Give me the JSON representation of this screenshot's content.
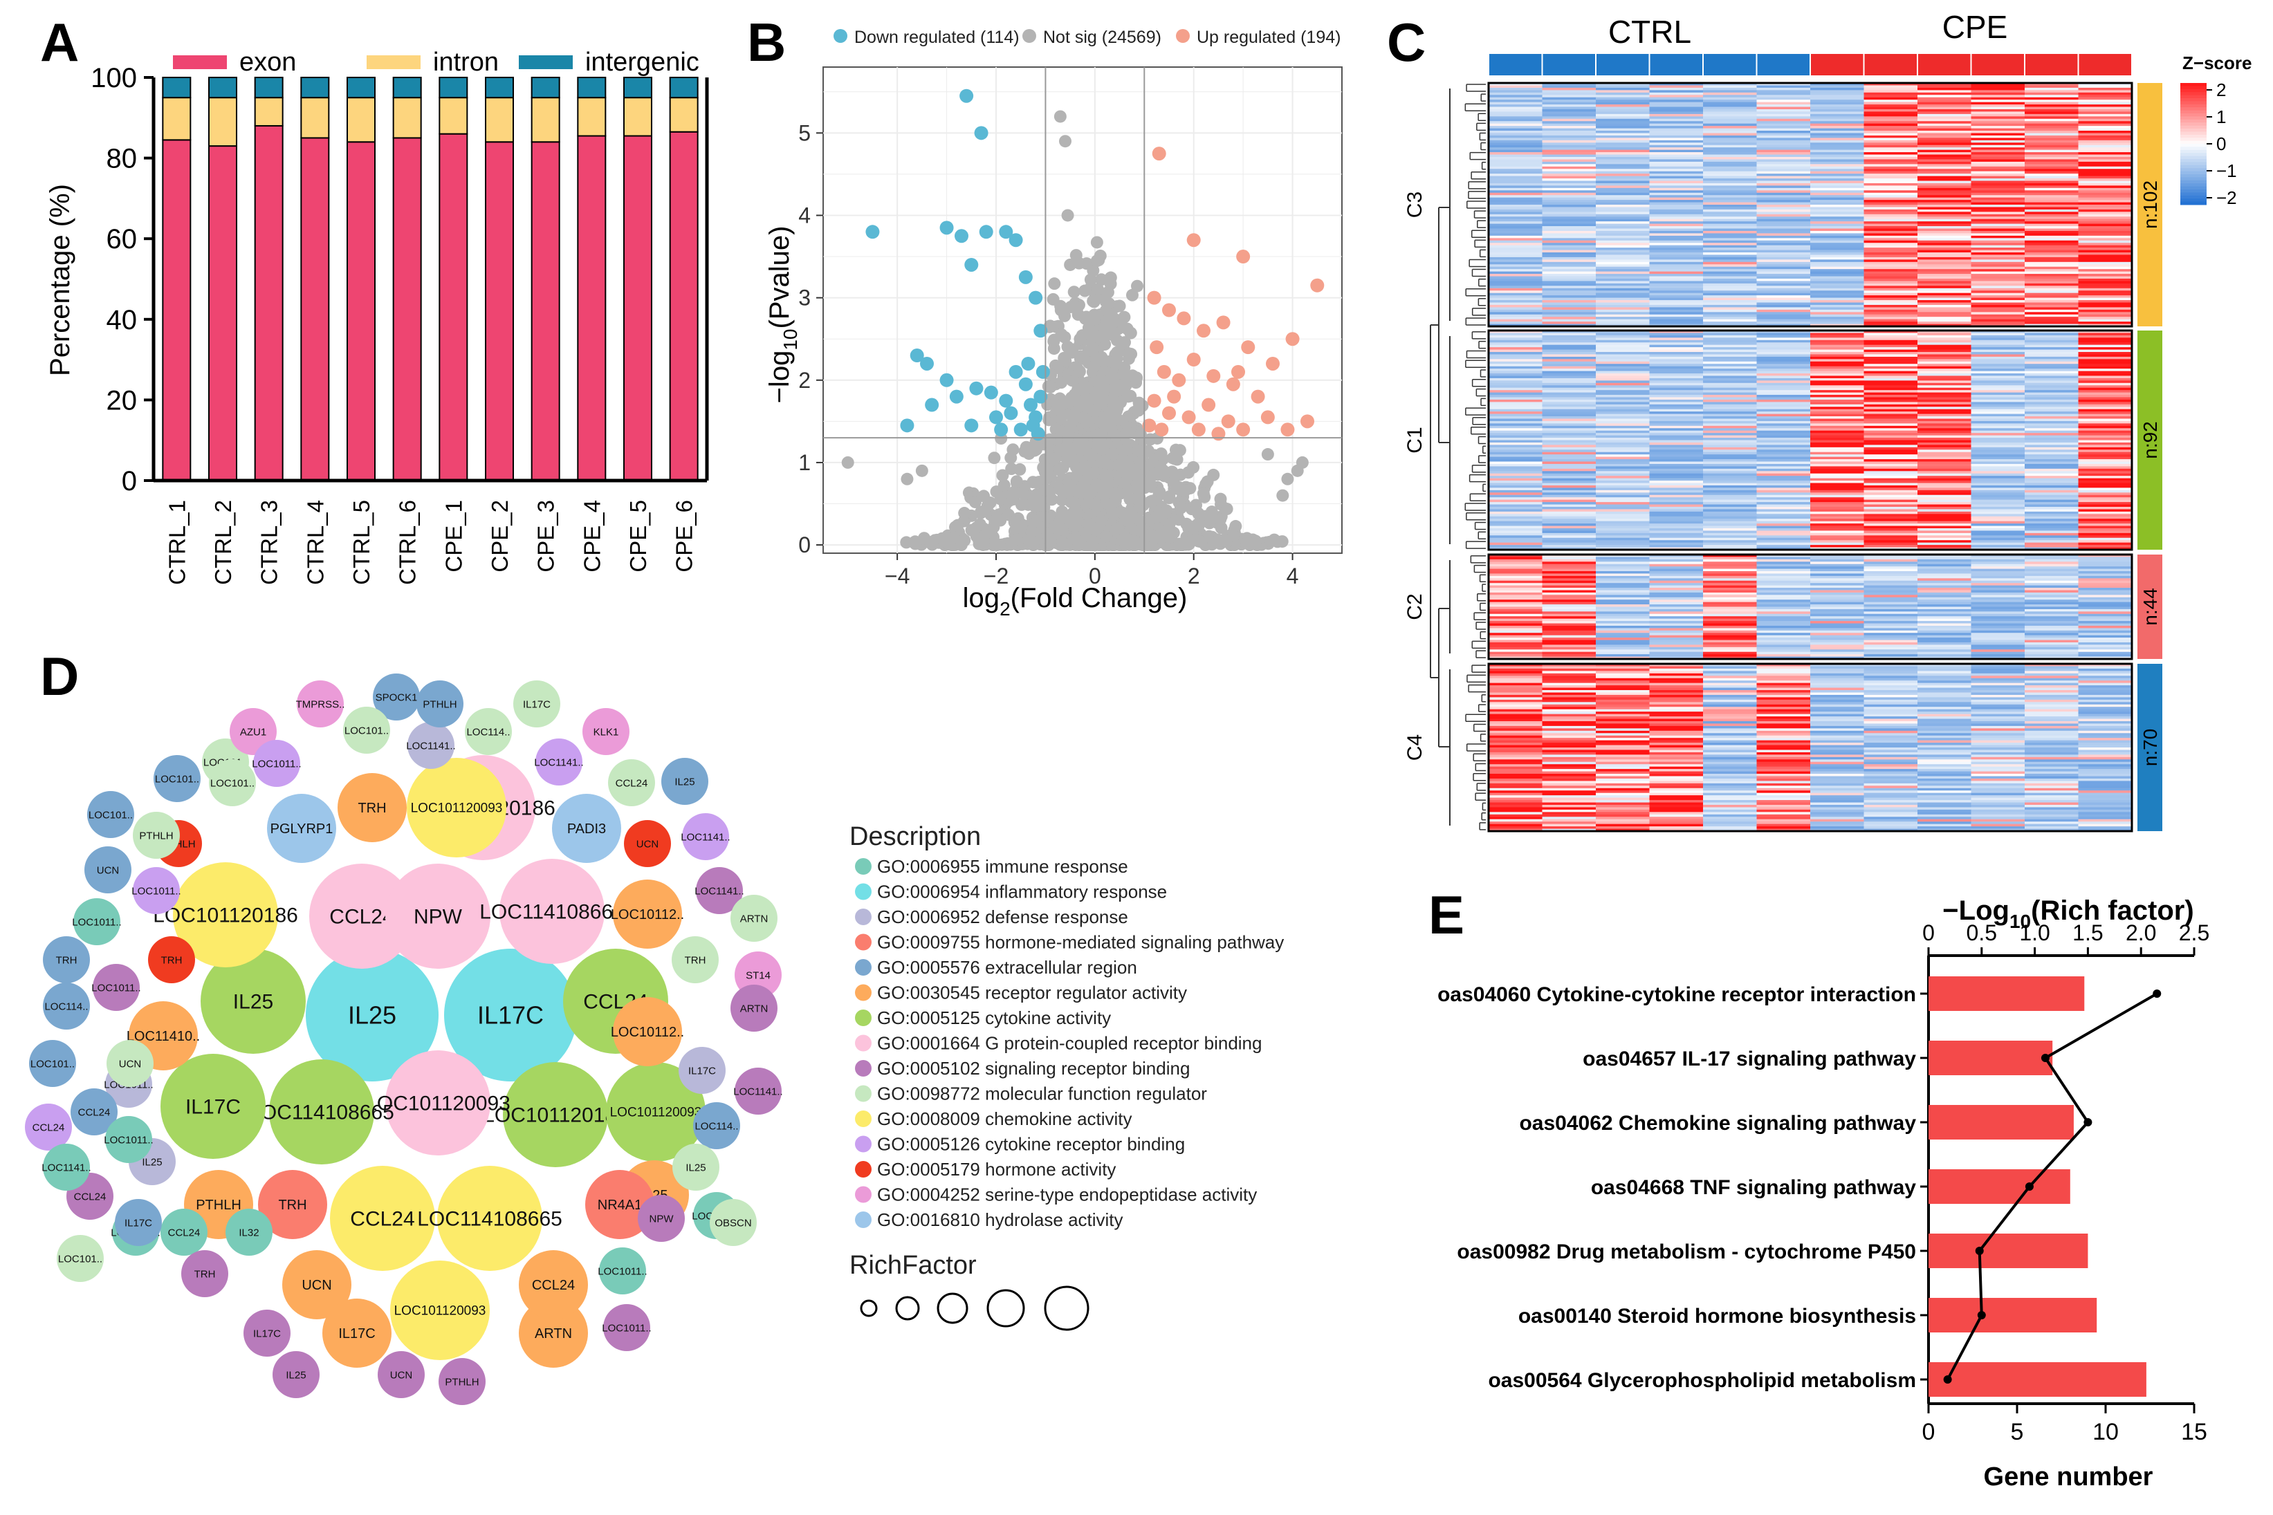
{
  "colors": {
    "exon": "#ee4571",
    "intron": "#fdd57e",
    "intergenic": "#1a86a8",
    "down": "#5ab8d4",
    "notsig": "#b3b3b3",
    "up": "#f4a08b",
    "ctrl_bar": "#1f78c8",
    "cpe_bar": "#ee2b2b",
    "c3": "#f8c03e",
    "c1": "#8cbf26",
    "c2": "#f26a6a",
    "c4": "#1f7fc0",
    "bar_e": "#f44a4a"
  },
  "chart_data": [
    {
      "panel": "A",
      "type": "bar",
      "stacked": true,
      "categories": [
        "CTRL_1",
        "CTRL_2",
        "CTRL_3",
        "CTRL_4",
        "CTRL_5",
        "CTRL_6",
        "CPE_1",
        "CPE_2",
        "CPE_3",
        "CPE_4",
        "CPE_5",
        "CPE_6"
      ],
      "series": [
        {
          "name": "exon",
          "values": [
            84.5,
            83,
            88,
            85,
            84,
            85,
            86,
            84,
            84,
            85.5,
            85.5,
            86.5
          ]
        },
        {
          "name": "intron",
          "values": [
            10.5,
            12,
            7,
            10,
            11,
            10,
            9,
            11,
            11,
            9.5,
            9.5,
            8.5
          ]
        },
        {
          "name": "intergenic",
          "values": [
            5,
            5,
            5,
            5,
            5,
            5,
            5,
            5,
            5,
            5,
            5,
            5
          ]
        }
      ],
      "ylabel": "Percentage (%)",
      "ylim": [
        0,
        100
      ],
      "yticks": [
        "0",
        "20",
        "40",
        "60",
        "80",
        "100"
      ]
    },
    {
      "panel": "B",
      "type": "scatter",
      "title": "",
      "legend": [
        "Down regulated (114)",
        "Not sig (24569)",
        "Up regulated (194)"
      ],
      "xlabel_main": "log",
      "xlabel_sub": "2",
      "xlabel_rest": "(Fold Change)",
      "ylabel_main": "−log",
      "ylabel_sub": "10",
      "ylabel_rest": "(Pvalue)",
      "xlim": [
        -5.5,
        5.0
      ],
      "ylim": [
        -0.1,
        5.8
      ],
      "xticks": [
        "−4",
        "−2",
        "0",
        "2",
        "4"
      ],
      "yticks": [
        "0",
        "1",
        "2",
        "3",
        "4",
        "5"
      ],
      "vlines": [
        -1,
        1
      ],
      "hline": 1.3,
      "down_points": [
        [
          -4.5,
          3.8
        ],
        [
          -2.6,
          5.45
        ],
        [
          -2.3,
          5.0
        ],
        [
          -3.0,
          3.85
        ],
        [
          -2.7,
          3.75
        ],
        [
          -2.2,
          3.8
        ],
        [
          -1.8,
          3.8
        ],
        [
          -1.6,
          3.7
        ],
        [
          -2.5,
          3.4
        ],
        [
          -1.4,
          3.25
        ],
        [
          -1.2,
          3.0
        ],
        [
          -1.1,
          2.6
        ],
        [
          -3.6,
          2.3
        ],
        [
          -3.4,
          2.2
        ],
        [
          -3.0,
          2.0
        ],
        [
          -3.3,
          1.7
        ],
        [
          -2.8,
          1.8
        ],
        [
          -2.4,
          1.9
        ],
        [
          -2.1,
          1.85
        ],
        [
          -1.8,
          1.75
        ],
        [
          -1.6,
          2.1
        ],
        [
          -1.4,
          1.95
        ],
        [
          -1.3,
          1.7
        ],
        [
          -1.2,
          1.55
        ],
        [
          -1.1,
          1.8
        ],
        [
          -3.8,
          1.45
        ],
        [
          -2.5,
          1.45
        ],
        [
          -1.9,
          1.4
        ],
        [
          -1.5,
          1.4
        ],
        [
          -1.15,
          1.35
        ],
        [
          -2.0,
          1.55
        ],
        [
          -1.7,
          1.6
        ],
        [
          -1.35,
          2.2
        ],
        [
          -1.05,
          2.1
        ],
        [
          -1.25,
          1.45
        ]
      ],
      "up_points": [
        [
          1.3,
          4.75
        ],
        [
          2.0,
          3.7
        ],
        [
          3.0,
          3.5
        ],
        [
          4.5,
          3.15
        ],
        [
          1.2,
          3.0
        ],
        [
          1.5,
          2.85
        ],
        [
          1.8,
          2.75
        ],
        [
          2.2,
          2.6
        ],
        [
          2.6,
          2.7
        ],
        [
          3.1,
          2.4
        ],
        [
          4.0,
          2.5
        ],
        [
          3.6,
          2.2
        ],
        [
          1.4,
          2.1
        ],
        [
          1.7,
          2.0
        ],
        [
          2.0,
          2.25
        ],
        [
          2.4,
          2.05
        ],
        [
          2.8,
          1.95
        ],
        [
          3.3,
          1.8
        ],
        [
          1.2,
          1.75
        ],
        [
          1.5,
          1.6
        ],
        [
          1.9,
          1.55
        ],
        [
          2.3,
          1.7
        ],
        [
          2.7,
          1.5
        ],
        [
          3.0,
          1.4
        ],
        [
          3.5,
          1.55
        ],
        [
          3.9,
          1.4
        ],
        [
          1.1,
          1.45
        ],
        [
          1.35,
          1.4
        ],
        [
          2.1,
          1.4
        ],
        [
          2.5,
          1.35
        ],
        [
          4.3,
          1.5
        ],
        [
          1.6,
          1.8
        ],
        [
          2.9,
          2.1
        ],
        [
          1.25,
          2.4
        ]
      ],
      "notsig_extreme": [
        [
          -5.0,
          1.0
        ],
        [
          -0.7,
          5.2
        ],
        [
          -0.6,
          4.9
        ],
        [
          -0.55,
          4.0
        ],
        [
          -0.5,
          3.4
        ],
        [
          0.3,
          3.2
        ],
        [
          0.5,
          2.9
        ],
        [
          -0.3,
          2.5
        ],
        [
          3.9,
          0.8
        ],
        [
          4.2,
          1.0
        ],
        [
          4.1,
          0.9
        ],
        [
          3.5,
          1.1
        ],
        [
          -3.5,
          0.9
        ],
        [
          -3.8,
          0.8
        ],
        [
          3.8,
          0.6
        ]
      ]
    },
    {
      "panel": "C",
      "type": "heatmap",
      "groups": [
        "CTRL",
        "CPE"
      ],
      "columns": 12,
      "legend_title": "Z−score",
      "legend_ticks": [
        "2",
        "1",
        "0",
        "−1",
        "−2"
      ],
      "clusters": [
        {
          "name": "C3",
          "n": "n:102",
          "rows": 102,
          "hot_cols": [
            7,
            8,
            9,
            10,
            11
          ]
        },
        {
          "name": "C1",
          "n": "n:92",
          "rows": 92,
          "hot_cols": [
            6,
            7,
            8,
            11
          ]
        },
        {
          "name": "C2",
          "n": "n:44",
          "rows": 44,
          "hot_cols": [
            0,
            1,
            4
          ]
        },
        {
          "name": "C4",
          "n": "n:70",
          "rows": 70,
          "hot_cols": [
            0,
            1,
            2,
            3,
            5
          ]
        }
      ]
    },
    {
      "panel": "E",
      "type": "bar",
      "orientation": "horizontal",
      "categories": [
        "oas04060 Cytokine-cytokine receptor interaction",
        "oas04657 IL-17 signaling pathway",
        "oas04062 Chemokine signaling pathway",
        "oas04668 TNF signaling pathway",
        "oas00982 Drug metabolism - cytochrome P450",
        "oas00140 Steroid hormone biosynthesis",
        "oas00564 Glycerophospholipid metabolism"
      ],
      "values": [
        8.8,
        7,
        8.2,
        8,
        9,
        9.5,
        12.3
      ],
      "line_values": [
        2.15,
        1.1,
        1.5,
        0.95,
        0.48,
        0.5,
        0.18
      ],
      "xlabel_bottom": "Gene number",
      "xlim_bottom": [
        0,
        15
      ],
      "xticks_bottom": [
        "0",
        "5",
        "10",
        "15"
      ],
      "xlabel_top_main": "−Log",
      "xlabel_top_sub": "10",
      "xlabel_top_rest": "(Rich factor)",
      "xlim_top": [
        0,
        2.5
      ],
      "xticks_top": [
        "0",
        "0.5",
        "1.0",
        "1.5",
        "2.0",
        "2.5"
      ]
    }
  ],
  "panelA": {
    "label": "A",
    "legend": [
      "exon",
      "intron",
      "intergenic"
    ]
  },
  "panelB": {
    "label": "B"
  },
  "panelC": {
    "label": "C",
    "ctrl": "CTRL",
    "cpe": "CPE"
  },
  "panelD": {
    "label": "D",
    "description_title": "Description",
    "terms": [
      {
        "id": "immune",
        "label": "GO:0006955 immune response",
        "color": "#79cbb8"
      },
      {
        "id": "inflam",
        "label": "GO:0006954 inflammatory response",
        "color": "#73dfe6"
      },
      {
        "id": "defense",
        "label": "GO:0006952 defense response",
        "color": "#b8b8d9"
      },
      {
        "id": "hormone",
        "label": "GO:0009755 hormone-mediated signaling pathway",
        "color": "#fa7d6e"
      },
      {
        "id": "extrac",
        "label": "GO:0005576 extracellular region",
        "color": "#7aa7cf"
      },
      {
        "id": "receptor",
        "label": "GO:0030545 receptor regulator activity",
        "color": "#fdab5c"
      },
      {
        "id": "cytokine",
        "label": "GO:0005125 cytokine activity",
        "color": "#a6d661"
      },
      {
        "id": "gpcr",
        "label": "GO:0001664 G protein-coupled receptor binding",
        "color": "#fcc3dc"
      },
      {
        "id": "signal",
        "label": "GO:0005102 signaling receptor binding",
        "color": "#b87bbb"
      },
      {
        "id": "molfn",
        "label": "GO:0098772 molecular function regulator",
        "color": "#c6e8c0"
      },
      {
        "id": "chemo",
        "label": "GO:0008009 chemokine activity",
        "color": "#fceb6a"
      },
      {
        "id": "cytbind",
        "label": "GO:0005126 cytokine receptor binding",
        "color": "#c99ff0"
      },
      {
        "id": "horm",
        "label": "GO:0005179 hormone activity",
        "color": "#f03b20"
      },
      {
        "id": "serine",
        "label": "GO:0004252 serine-type endopeptidase activity",
        "color": "#eb9bd8"
      },
      {
        "id": "hydro",
        "label": "GO:0016810 hydrolase activity",
        "color": "#9cc6ea"
      }
    ],
    "richfactor_title": "RichFactor",
    "bubbles": [
      {
        "label": "IL25",
        "term": "inflam",
        "size": 5
      },
      {
        "label": "IL17C",
        "term": "inflam",
        "size": 5
      },
      {
        "label": "CCL24",
        "term": "gpcr",
        "size": 4
      },
      {
        "label": "NPW",
        "term": "gpcr",
        "size": 4
      },
      {
        "label": "LOC114108665",
        "term": "gpcr",
        "size": 4
      },
      {
        "label": "CCL24",
        "term": "cytokine",
        "size": 4
      },
      {
        "label": "LOC101120186",
        "term": "cytokine",
        "size": 4
      },
      {
        "label": "LOC101120093",
        "term": "gpcr",
        "size": 4
      },
      {
        "label": "LOC114108665",
        "term": "cytokine",
        "size": 4
      },
      {
        "label": "IL17C",
        "term": "cytokine",
        "size": 4
      },
      {
        "label": "IL25",
        "term": "cytokine",
        "size": 4
      },
      {
        "label": "LOC101120186",
        "term": "gpcr",
        "size": 4
      },
      {
        "label": "LOC101120093",
        "term": "cytokine",
        "size": 3
      },
      {
        "label": "CCL24",
        "term": "chemo",
        "size": 4
      },
      {
        "label": "LOC114108665",
        "term": "chemo",
        "size": 4
      },
      {
        "label": "LOC101120093",
        "term": "chemo",
        "size": 3
      },
      {
        "label": "LOC101120186",
        "term": "chemo",
        "size": 4
      },
      {
        "label": "TRH",
        "term": "receptor",
        "size": 2
      },
      {
        "label": "PGLYRP1",
        "term": "hydro",
        "size": 2
      },
      {
        "label": "PADI3",
        "term": "hydro",
        "size": 2
      },
      {
        "label": "PTHLH",
        "term": "horm",
        "size": 1
      },
      {
        "label": "TRH",
        "term": "horm",
        "size": 1
      },
      {
        "label": "UCN",
        "term": "horm",
        "size": 1
      },
      {
        "label": "LOC10112..",
        "term": "receptor",
        "size": 2
      },
      {
        "label": "LOC11410..",
        "term": "receptor",
        "size": 2
      },
      {
        "label": "LOC10112..",
        "term": "receptor",
        "size": 2
      },
      {
        "label": "LOC1011..",
        "term": "defense",
        "size": 1
      },
      {
        "label": "IL25",
        "term": "defense",
        "size": 1
      },
      {
        "label": "PTHLH",
        "term": "receptor",
        "size": 2
      },
      {
        "label": "TRH",
        "term": "hormone",
        "size": 2
      },
      {
        "label": "UCN",
        "term": "receptor",
        "size": 2
      },
      {
        "label": "IL17C",
        "term": "receptor",
        "size": 2
      },
      {
        "label": "ARTN",
        "term": "receptor",
        "size": 2
      },
      {
        "label": "CCL24",
        "term": "receptor",
        "size": 2
      },
      {
        "label": "IL25",
        "term": "receptor",
        "size": 2
      },
      {
        "label": "NR4A1",
        "term": "hormone",
        "size": 2
      },
      {
        "label": "LOC1011..",
        "term": "immune",
        "size": 1
      },
      {
        "label": "LOC1141..",
        "term": "immune",
        "size": 1
      },
      {
        "label": "IL32",
        "term": "immune",
        "size": 1
      },
      {
        "label": "CCL24",
        "term": "immune",
        "size": 1
      },
      {
        "label": "LOC1011..",
        "term": "immune",
        "size": 1
      },
      {
        "label": "LOC101120093",
        "term": "chemo",
        "size": 3
      },
      {
        "label": "LOC101..",
        "term": "molfn",
        "size": 1
      },
      {
        "label": "LOC1141..",
        "term": "defense",
        "size": 1
      },
      {
        "label": "SPOCK1",
        "term": "extrac",
        "size": 1
      },
      {
        "label": "PTHLH",
        "term": "extrac",
        "size": 1
      },
      {
        "label": "IL17C",
        "term": "molfn",
        "size": 1
      },
      {
        "label": "TMPRSS..",
        "term": "serine",
        "size": 1
      },
      {
        "label": "LOC101..",
        "term": "molfn",
        "size": 1
      },
      {
        "label": "LOC114..",
        "term": "molfn",
        "size": 1
      },
      {
        "label": "AZU1",
        "term": "serine",
        "size": 1
      },
      {
        "label": "LOC1011..",
        "term": "cytbind",
        "size": 1
      },
      {
        "label": "KLK1",
        "term": "serine",
        "size": 1
      },
      {
        "label": "LOC1141..",
        "term": "cytbind",
        "size": 1
      },
      {
        "label": "LOC101..",
        "term": "extrac",
        "size": 1
      },
      {
        "label": "LOC101..",
        "term": "molfn",
        "size": 1
      },
      {
        "label": "CCL24",
        "term": "molfn",
        "size": 1
      },
      {
        "label": "IL25",
        "term": "extrac",
        "size": 1
      },
      {
        "label": "LOC101..",
        "term": "extrac",
        "size": 1
      },
      {
        "label": "PTHLH",
        "term": "molfn",
        "size": 1
      },
      {
        "label": "LOC1141..",
        "term": "cytbind",
        "size": 1
      },
      {
        "label": "UCN",
        "term": "extrac",
        "size": 1
      },
      {
        "label": "LOC1011..",
        "term": "cytbind",
        "size": 1
      },
      {
        "label": "LOC1141..",
        "term": "signal",
        "size": 1
      },
      {
        "label": "ARTN",
        "term": "molfn",
        "size": 1
      },
      {
        "label": "ST14",
        "term": "serine",
        "size": 1
      },
      {
        "label": "LOC1011..",
        "term": "immune",
        "size": 1
      },
      {
        "label": "TRH",
        "term": "extrac",
        "size": 1
      },
      {
        "label": "TRH",
        "term": "molfn",
        "size": 1
      },
      {
        "label": "LOC1011..",
        "term": "signal",
        "size": 1
      },
      {
        "label": "LOC114..",
        "term": "extrac",
        "size": 1
      },
      {
        "label": "ARTN",
        "term": "signal",
        "size": 1
      },
      {
        "label": "UCN",
        "term": "molfn",
        "size": 1
      },
      {
        "label": "IL17C",
        "term": "defense",
        "size": 1
      },
      {
        "label": "LOC101..",
        "term": "extrac",
        "size": 1
      },
      {
        "label": "LOC1141..",
        "term": "signal",
        "size": 1
      },
      {
        "label": "CCL24",
        "term": "extrac",
        "size": 1
      },
      {
        "label": "CCL24",
        "term": "cytbind",
        "size": 1
      },
      {
        "label": "LOC1011..",
        "term": "immune",
        "size": 1
      },
      {
        "label": "LOC114..",
        "term": "extrac",
        "size": 1
      },
      {
        "label": "CCL24",
        "term": "signal",
        "size": 1
      },
      {
        "label": "OBSCN",
        "term": "molfn",
        "size": 1
      },
      {
        "label": "IL17C",
        "term": "extrac",
        "size": 1
      },
      {
        "label": "LOC1141..",
        "term": "immune",
        "size": 1
      },
      {
        "label": "IL25",
        "term": "molfn",
        "size": 1
      },
      {
        "label": "LOC101..",
        "term": "molfn",
        "size": 1
      },
      {
        "label": "TRH",
        "term": "signal",
        "size": 1
      },
      {
        "label": "LOC1011..",
        "term": "signal",
        "size": 1
      },
      {
        "label": "IL17C",
        "term": "signal",
        "size": 1
      },
      {
        "label": "NPW",
        "term": "signal",
        "size": 1
      },
      {
        "label": "IL25",
        "term": "signal",
        "size": 1
      },
      {
        "label": "UCN",
        "term": "signal",
        "size": 1
      },
      {
        "label": "PTHLH",
        "term": "signal",
        "size": 1
      }
    ]
  },
  "panelE": {
    "label": "E"
  }
}
